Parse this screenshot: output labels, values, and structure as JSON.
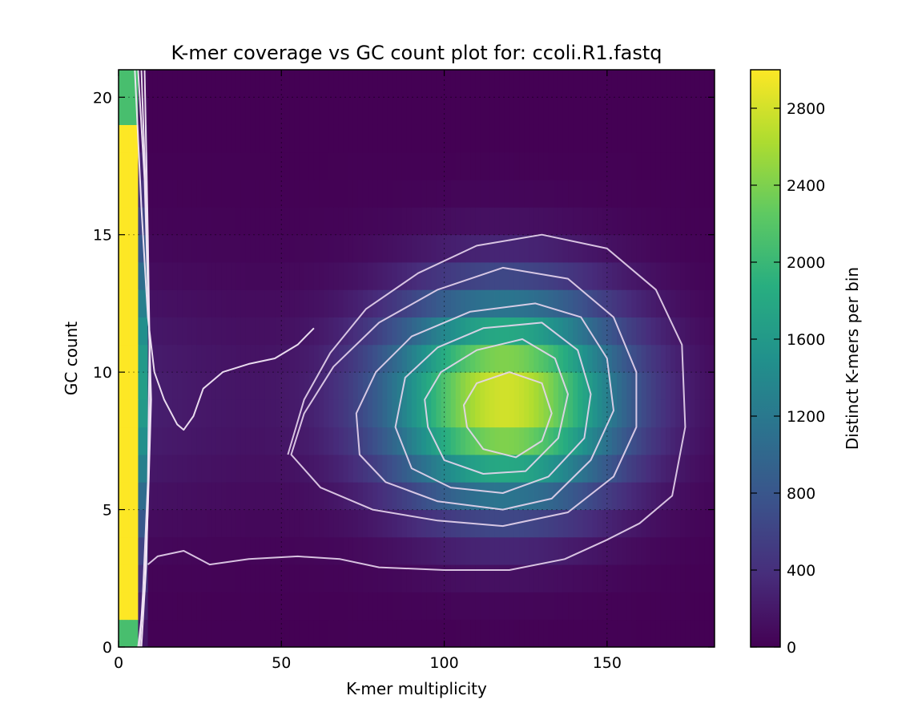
{
  "chart_data": {
    "type": "heatmap",
    "title": "K-mer coverage vs GC count plot for: ccoli.R1.fastq",
    "xlabel": "K-mer multiplicity",
    "ylabel": "GC count",
    "colorbar_label": "Distinct K-mers per bin",
    "xlim": [
      0,
      183
    ],
    "ylim": [
      0,
      21
    ],
    "x_ticks": [
      0,
      50,
      100,
      150
    ],
    "y_ticks": [
      0,
      5,
      10,
      15,
      20
    ],
    "colorbar_range": [
      0,
      3000
    ],
    "colorbar_ticks": [
      0,
      400,
      800,
      1200,
      1600,
      2000,
      2400,
      2800
    ],
    "grid": true,
    "colormap": "viridis",
    "gc_bins": [
      0,
      1,
      2,
      3,
      4,
      5,
      6,
      7,
      8,
      9,
      10,
      11,
      12,
      13,
      14,
      15,
      16,
      17,
      18,
      19,
      20
    ],
    "error_peak": {
      "x_max": 8,
      "count": 3000
    },
    "coverage_peak": {
      "x": 118,
      "gc": 9.0,
      "peak_count": 2800,
      "x_spread": 25,
      "gc_spread": 2.6
    },
    "contour_levels": [
      {
        "level": 1,
        "points": [
          [
            52,
            7
          ],
          [
            57,
            9
          ],
          [
            65,
            10.7
          ],
          [
            76,
            12.3
          ],
          [
            92,
            13.6
          ],
          [
            110,
            14.6
          ],
          [
            130,
            15
          ],
          [
            150,
            14.5
          ],
          [
            165,
            13
          ],
          [
            173,
            11
          ],
          [
            174,
            8
          ],
          [
            170,
            5.5
          ],
          [
            160,
            4.5
          ],
          [
            150,
            3.9
          ],
          [
            137,
            3.2
          ],
          [
            120,
            2.8
          ],
          [
            100,
            2.8
          ],
          [
            80,
            2.9
          ],
          [
            68,
            3.2
          ],
          [
            55,
            3.3
          ],
          [
            40,
            3.2
          ],
          [
            28,
            3.0
          ],
          [
            20,
            3.5
          ],
          [
            12,
            3.3
          ],
          [
            9,
            3
          ]
        ]
      },
      {
        "level": 2,
        "points": [
          [
            53,
            7
          ],
          [
            62,
            5.8
          ],
          [
            78,
            5.0
          ],
          [
            98,
            4.6
          ],
          [
            118,
            4.4
          ],
          [
            138,
            4.9
          ],
          [
            152,
            6.2
          ],
          [
            159,
            8
          ],
          [
            159,
            10
          ],
          [
            152,
            12
          ],
          [
            138,
            13.4
          ],
          [
            118,
            13.8
          ],
          [
            98,
            13.0
          ],
          [
            80,
            11.8
          ],
          [
            66,
            10.2
          ],
          [
            57,
            8.5
          ]
        ]
      },
      {
        "level": 3,
        "points": [
          [
            74,
            7
          ],
          [
            82,
            6
          ],
          [
            98,
            5.3
          ],
          [
            118,
            5.0
          ],
          [
            133,
            5.4
          ],
          [
            145,
            6.8
          ],
          [
            152,
            8.6
          ],
          [
            150,
            10.5
          ],
          [
            142,
            12
          ],
          [
            128,
            12.5
          ],
          [
            108,
            12.2
          ],
          [
            90,
            11.3
          ],
          [
            79,
            10
          ],
          [
            73,
            8.5
          ]
        ]
      },
      {
        "level": 4,
        "points": [
          [
            85,
            8
          ],
          [
            90,
            6.5
          ],
          [
            102,
            5.8
          ],
          [
            118,
            5.6
          ],
          [
            132,
            6.2
          ],
          [
            143,
            7.6
          ],
          [
            145,
            9.2
          ],
          [
            141,
            10.8
          ],
          [
            130,
            11.8
          ],
          [
            112,
            11.6
          ],
          [
            98,
            10.9
          ],
          [
            88,
            9.8
          ]
        ]
      },
      {
        "level": 5,
        "points": [
          [
            95,
            8
          ],
          [
            100,
            6.8
          ],
          [
            112,
            6.3
          ],
          [
            125,
            6.4
          ],
          [
            135,
            7.6
          ],
          [
            138,
            9.2
          ],
          [
            134,
            10.5
          ],
          [
            124,
            11.2
          ],
          [
            110,
            10.8
          ],
          [
            99,
            10
          ],
          [
            94,
            9
          ]
        ]
      },
      {
        "level": 6,
        "points": [
          [
            107,
            8
          ],
          [
            112,
            7.2
          ],
          [
            122,
            6.9
          ],
          [
            130,
            7.5
          ],
          [
            133,
            8.5
          ],
          [
            130,
            9.6
          ],
          [
            120,
            10.0
          ],
          [
            110,
            9.6
          ],
          [
            106,
            8.8
          ]
        ]
      }
    ],
    "error_contours": [
      {
        "level": 1,
        "points": [
          [
            5,
            21
          ],
          [
            7,
            16
          ],
          [
            9,
            12
          ],
          [
            11,
            10
          ],
          [
            14,
            9
          ],
          [
            18,
            8.1
          ],
          [
            20,
            7.9
          ],
          [
            23,
            8.4
          ],
          [
            26,
            9.4
          ],
          [
            32,
            10.0
          ],
          [
            40,
            10.3
          ],
          [
            48,
            10.5
          ],
          [
            55,
            11.0
          ],
          [
            60,
            11.6
          ]
        ]
      },
      {
        "level": 2,
        "points": [
          [
            6,
            21
          ],
          [
            8,
            17
          ],
          [
            9,
            13
          ],
          [
            10,
            9
          ],
          [
            9,
            5
          ],
          [
            8,
            2
          ],
          [
            6,
            0
          ]
        ]
      },
      {
        "level": 3,
        "points": [
          [
            7,
            21
          ],
          [
            8.5,
            16
          ],
          [
            9.5,
            11
          ],
          [
            9,
            6
          ],
          [
            7.5,
            2
          ],
          [
            6.5,
            0
          ]
        ]
      },
      {
        "level": 4,
        "points": [
          [
            8,
            21
          ],
          [
            9,
            15
          ],
          [
            9.8,
            9
          ],
          [
            8.5,
            3
          ],
          [
            7,
            0
          ]
        ]
      }
    ]
  }
}
